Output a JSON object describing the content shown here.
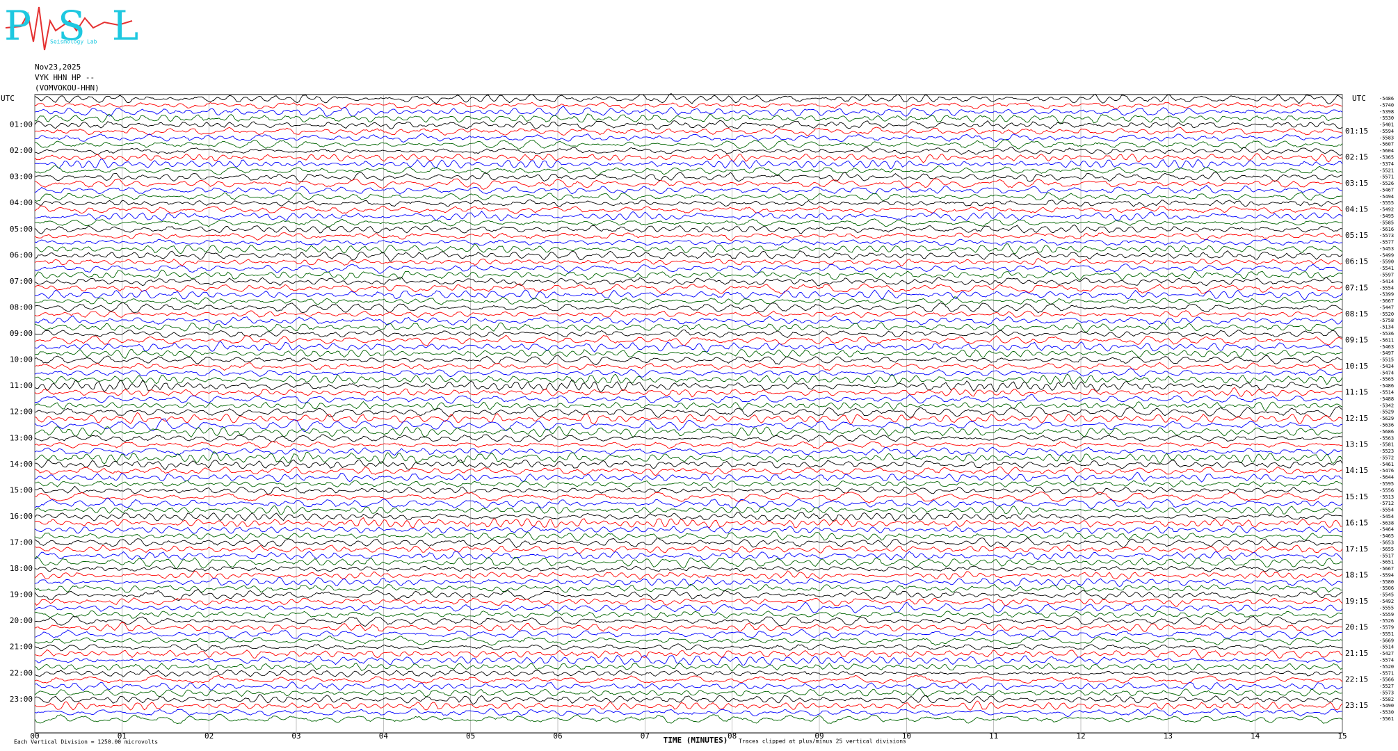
{
  "logo": {
    "mark": "PSL",
    "caption": "Seismology Lab"
  },
  "header": {
    "date": "Nov23,2025",
    "station": "VYK HHN HP --",
    "channel": "(VOMVOKOU-HHN)"
  },
  "left_axis": {
    "title": "UTC",
    "labels": [
      "01:00",
      "02:00",
      "03:00",
      "04:00",
      "05:00",
      "06:00",
      "07:00",
      "08:00",
      "09:00",
      "10:00",
      "11:00",
      "12:00",
      "13:00",
      "14:00",
      "15:00",
      "16:00",
      "17:00",
      "18:00",
      "19:00",
      "20:00",
      "21:00",
      "22:00",
      "23:00"
    ]
  },
  "right_axis": {
    "title": "UTC",
    "labels": [
      "01:15",
      "02:15",
      "03:15",
      "04:15",
      "05:15",
      "06:15",
      "07:15",
      "08:15",
      "09:15",
      "10:15",
      "11:15",
      "12:15",
      "13:15",
      "14:15",
      "15:15",
      "16:15",
      "17:15",
      "18:15",
      "19:15",
      "20:15",
      "21:15",
      "22:15",
      "23:15"
    ]
  },
  "trace_offsets": [
    -5486,
    -5740,
    -5398,
    -5530,
    -5401,
    -5594,
    -5583,
    -5607,
    -5604,
    -5365,
    -5374,
    -5521,
    -5571,
    -5526,
    -5467,
    -5494,
    -5555,
    -5492,
    -5495,
    -5585,
    -5616,
    -5573,
    -5577,
    -5453,
    -5499,
    -5590,
    -5541,
    -5597,
    -5414,
    -5554,
    -5399,
    -5667,
    -5447,
    -5520,
    -5758,
    -5134,
    -5536,
    -5611,
    -5463,
    -5497,
    -5515,
    -5434,
    -5474,
    -5565,
    -5486,
    -5514,
    -5488,
    -5342,
    -5529,
    -5629,
    -5636,
    -5686,
    -5563,
    -5581,
    -5523,
    -5572,
    -5461,
    -5476,
    -5644,
    -5595,
    -5556,
    -5513,
    -5712,
    -5554,
    -5454,
    -5638,
    -5464,
    -5465,
    -5653,
    -5655,
    -5517,
    -5651,
    -5667,
    -5594,
    -5580,
    -5506,
    -5545,
    -5492,
    -5555,
    -5559,
    -5526,
    -5579,
    -5551,
    -5669,
    -5514,
    -5427,
    -5574,
    -5520,
    -5571,
    -5566,
    -5527,
    -5573,
    -5582,
    -5490,
    -5530,
    -5561
  ],
  "trace_colors": [
    "#000000",
    "#ff0000",
    "#0000ff",
    "#006400"
  ],
  "x_axis": {
    "title": "TIME (MINUTES)",
    "ticks": [
      "00",
      "01",
      "02",
      "03",
      "04",
      "05",
      "06",
      "07",
      "08",
      "09",
      "10",
      "11",
      "12",
      "13",
      "14",
      "15"
    ]
  },
  "footer": {
    "scale": "Each Vertical Division = 1250.00 microvolts",
    "clip": "Traces clipped at plus/minus 25 vertical divisions"
  }
}
